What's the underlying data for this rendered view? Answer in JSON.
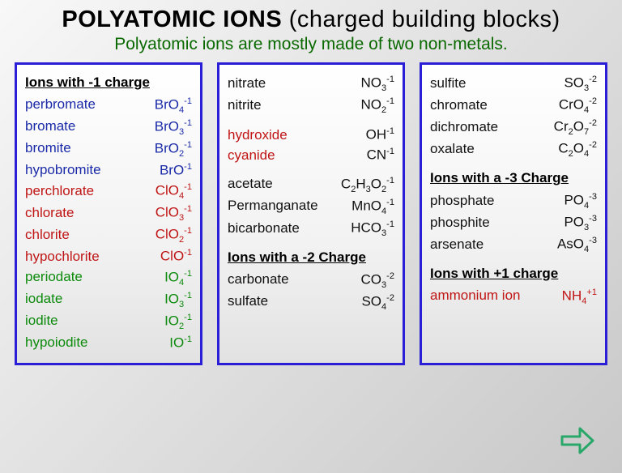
{
  "title_main": "POLYATOMIC  IONS ",
  "title_paren": "(charged building blocks)",
  "subtitle": "Polyatomic ions are mostly made of two non-metals.",
  "colors": {
    "blue": "#1a2aa8",
    "red": "#c01515",
    "green": "#0c8a0c",
    "black": "#111111",
    "border": "#2a1fd6",
    "subtitle": "#0a6900"
  },
  "col1": {
    "header": "Ions with -1 charge",
    "rows": [
      {
        "name": "perbromate",
        "f": "BrO",
        "sub": "4",
        "sup": "-1",
        "cls": "blue"
      },
      {
        "name": "bromate",
        "f": "BrO",
        "sub": "3",
        "sup": "-1",
        "cls": "blue"
      },
      {
        "name": "bromite",
        "f": "BrO",
        "sub": "2",
        "sup": "-1",
        "cls": "blue"
      },
      {
        "name": "hypobromite",
        "f": "BrO",
        "sub": "",
        "sup": "-1",
        "cls": "blue"
      },
      {
        "name": "perchlorate",
        "f": "ClO",
        "sub": "4",
        "sup": "-1",
        "cls": "red"
      },
      {
        "name": "chlorate",
        "f": "ClO",
        "sub": "3",
        "sup": "-1",
        "cls": "red"
      },
      {
        "name": "chlorite",
        "f": "ClO",
        "sub": "2",
        "sup": "-1",
        "cls": "red"
      },
      {
        "name": "hypochlorite",
        "f": "ClO",
        "sub": "",
        "sup": "-1",
        "cls": "red"
      },
      {
        "name": "periodate",
        "f": "IO",
        "sub": "4",
        "sup": "-1",
        "cls": "green"
      },
      {
        "name": "iodate",
        "f": "IO",
        "sub": "3",
        "sup": "-1",
        "cls": "green"
      },
      {
        "name": "iodite",
        "f": "IO",
        "sub": "2",
        "sup": "-1",
        "cls": "green"
      },
      {
        "name": "hypoiodite",
        "f": "IO",
        "sub": "",
        "sup": "-1",
        "cls": "green"
      }
    ]
  },
  "col2": {
    "rows1": [
      {
        "name": "nitrate",
        "f": "NO",
        "sub": "3",
        "sup": "-1",
        "cls": "blk"
      },
      {
        "name": "nitrite",
        "f": "NO",
        "sub": "2",
        "sup": "-1",
        "cls": "blk"
      }
    ],
    "rows2": [
      {
        "name": "hydroxide",
        "f": "OH",
        "sub": "",
        "sup": "-1",
        "cls": "red",
        "fcls": "blk"
      },
      {
        "name": "cyanide",
        "f": "CN",
        "sub": "",
        "sup": "-1",
        "cls": "red",
        "fcls": "blk"
      }
    ],
    "rows3": [
      {
        "name": "acetate",
        "html": "C<sub>2</sub>H<sub>3</sub>O<sub>2</sub><sup>-1</sup>",
        "cls": "blk"
      },
      {
        "name": "Permanganate",
        "f": "MnO",
        "sub": "4",
        "sup": "-1",
        "cls": "blk"
      },
      {
        "name": "bicarbonate",
        "f": "HCO",
        "sub": "3",
        "sup": "-1",
        "cls": "blk"
      }
    ],
    "header2": "Ions with a -2 Charge",
    "rows4": [
      {
        "name": "carbonate",
        "f": "CO",
        "sub": "3",
        "sup": "-2",
        "cls": "blk"
      },
      {
        "name": "sulfate",
        "f": "SO",
        "sub": "4",
        "sup": "-2",
        "cls": "blk"
      }
    ]
  },
  "col3": {
    "rows1": [
      {
        "name": "sulfite",
        "f": "SO",
        "sub": "3",
        "sup": "-2",
        "cls": "blk"
      },
      {
        "name": "chromate",
        "f": "CrO",
        "sub": "4",
        "sup": "-2",
        "cls": "blk"
      },
      {
        "name": "dichromate",
        "html": "Cr<sub>2</sub>O<sub>7</sub><sup>-2</sup>",
        "cls": "blk"
      },
      {
        "name": "oxalate",
        "html": "C<sub>2</sub>O<sub>4</sub><sup>-2</sup>",
        "cls": "blk"
      }
    ],
    "header2": "Ions with a -3 Charge",
    "rows2": [
      {
        "name": "phosphate",
        "f": "PO",
        "sub": "4",
        "sup": "-3",
        "cls": "blk"
      },
      {
        "name": "phosphite",
        "f": "PO",
        "sub": "3",
        "sup": "-3",
        "cls": "blk"
      },
      {
        "name": "arsenate",
        "f": "AsO",
        "sub": "4",
        "sup": "-3",
        "cls": "blk"
      }
    ],
    "header3": "Ions with +1 charge",
    "rows3": [
      {
        "name": "ammonium ion",
        "f": "NH",
        "sub": "4",
        "sup": "+1",
        "cls": "red"
      }
    ]
  }
}
